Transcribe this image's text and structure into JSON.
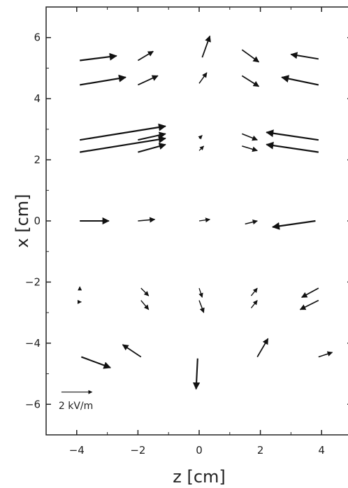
{
  "chart_data": {
    "type": "quiver",
    "xlabel": "z [cm]",
    "ylabel": "x [cm]",
    "xlim": [
      -5,
      5
    ],
    "ylim": [
      -7,
      7
    ],
    "xticks": [
      -4,
      -2,
      0,
      2,
      4
    ],
    "xtick_labels": [
      "−4",
      "−2",
      "0",
      "2",
      "4"
    ],
    "yticks": [
      -6,
      -4,
      -2,
      0,
      2,
      4,
      6
    ],
    "ytick_labels": [
      "−6",
      "−4",
      "−2",
      "0",
      "2",
      "4",
      "6"
    ],
    "grid": false,
    "reference_vector": {
      "label": "2 kV/m",
      "dz": 1.0,
      "dx": 0,
      "origin": [
        -4.5,
        -5.6
      ]
    },
    "vectors": [
      {
        "z": -3.9,
        "x": 5.25,
        "dz": 1.2,
        "dx": 0.15
      },
      {
        "z": -2.0,
        "x": 5.25,
        "dz": 0.5,
        "dx": 0.3
      },
      {
        "z": 0.1,
        "x": 5.35,
        "dz": 0.25,
        "dx": 0.7
      },
      {
        "z": 1.4,
        "x": 5.6,
        "dz": 0.55,
        "dx": -0.4
      },
      {
        "z": 3.9,
        "x": 5.3,
        "dz": -0.9,
        "dx": 0.15
      },
      {
        "z": -3.9,
        "x": 4.45,
        "dz": 1.5,
        "dx": 0.25
      },
      {
        "z": -2.0,
        "x": 4.45,
        "dz": 0.65,
        "dx": 0.3
      },
      {
        "z": 0.0,
        "x": 4.5,
        "dz": 0.25,
        "dx": 0.35
      },
      {
        "z": 1.4,
        "x": 4.75,
        "dz": 0.55,
        "dx": -0.35
      },
      {
        "z": 3.9,
        "x": 4.45,
        "dz": -1.2,
        "dx": 0.25
      },
      {
        "z": -3.9,
        "x": 2.65,
        "dz": 2.8,
        "dx": 0.45
      },
      {
        "z": -3.9,
        "x": 2.25,
        "dz": 2.8,
        "dx": 0.45
      },
      {
        "z": -2.0,
        "x": 2.65,
        "dz": 0.9,
        "dx": 0.2
      },
      {
        "z": -2.0,
        "x": 2.25,
        "dz": 0.9,
        "dx": 0.25
      },
      {
        "z": 0.0,
        "x": 2.7,
        "dz": 0.1,
        "dx": 0.1
      },
      {
        "z": 0.0,
        "x": 2.3,
        "dz": 0.15,
        "dx": 0.15
      },
      {
        "z": 1.4,
        "x": 2.85,
        "dz": 0.5,
        "dx": -0.2
      },
      {
        "z": 1.4,
        "x": 2.45,
        "dz": 0.5,
        "dx": -0.15
      },
      {
        "z": 3.9,
        "x": 2.65,
        "dz": -1.7,
        "dx": 0.25
      },
      {
        "z": 3.9,
        "x": 2.25,
        "dz": -1.7,
        "dx": 0.25
      },
      {
        "z": -3.9,
        "x": 0.0,
        "dz": 0.95,
        "dx": 0.0
      },
      {
        "z": -2.0,
        "x": 0.0,
        "dz": 0.55,
        "dx": 0.05
      },
      {
        "z": 0.0,
        "x": 0.0,
        "dz": 0.35,
        "dx": 0.05
      },
      {
        "z": 1.5,
        "x": -0.1,
        "dz": 0.4,
        "dx": 0.1
      },
      {
        "z": 3.8,
        "x": 0.0,
        "dz": -1.4,
        "dx": -0.2
      },
      {
        "z": -3.9,
        "x": -2.25,
        "dz": 0.0,
        "dx": 0.1
      },
      {
        "z": -3.9,
        "x": -2.65,
        "dz": 0.05,
        "dx": 0.0
      },
      {
        "z": -1.9,
        "x": -2.2,
        "dz": 0.25,
        "dx": -0.25
      },
      {
        "z": -1.9,
        "x": -2.6,
        "dz": 0.25,
        "dx": -0.3
      },
      {
        "z": 0.0,
        "x": -2.2,
        "dz": 0.1,
        "dx": -0.3
      },
      {
        "z": 0.0,
        "x": -2.6,
        "dz": 0.15,
        "dx": -0.4
      },
      {
        "z": 1.7,
        "x": -2.45,
        "dz": 0.2,
        "dx": 0.25
      },
      {
        "z": 1.7,
        "x": -2.85,
        "dz": 0.2,
        "dx": 0.25
      },
      {
        "z": 3.9,
        "x": -2.2,
        "dz": -0.55,
        "dx": -0.3
      },
      {
        "z": 3.9,
        "x": -2.6,
        "dz": -0.6,
        "dx": -0.3
      },
      {
        "z": -3.85,
        "x": -4.45,
        "dz": 0.95,
        "dx": -0.35
      },
      {
        "z": -1.9,
        "x": -4.45,
        "dz": -0.6,
        "dx": 0.4
      },
      {
        "z": -0.05,
        "x": -4.5,
        "dz": -0.05,
        "dx": -1.0
      },
      {
        "z": 1.9,
        "x": -4.45,
        "dz": 0.35,
        "dx": 0.6
      },
      {
        "z": 3.9,
        "x": -4.45,
        "dz": 0.45,
        "dx": 0.15
      }
    ]
  }
}
